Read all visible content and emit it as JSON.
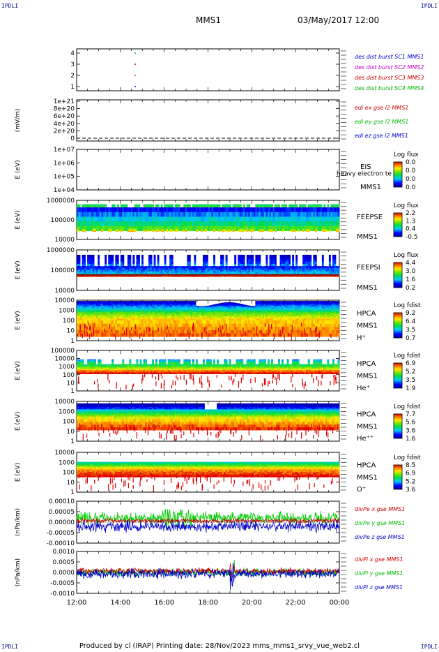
{
  "page": {
    "corner_tag": "IPDLI",
    "spacecraft": "MMS1",
    "date": "03/May/2017 12:00",
    "footer": "Produced by cl (IRAP)   Printing date: 28/Nov/2023   mms_mms1_srvy_vue_web2.cl"
  },
  "time_axis": {
    "ticks": [
      "12:00",
      "14:00",
      "16:00",
      "18:00",
      "20:00",
      "22:00",
      "00:00"
    ]
  },
  "panels": [
    {
      "id": "burst",
      "type": "markers",
      "ylabel": "",
      "yticks": [
        "4",
        "3",
        "2",
        "1"
      ],
      "legend": [
        {
          "text": "des dist burst SC1 MMS1",
          "color": "#0000cc"
        },
        {
          "text": "des dist burst SC2 MMS2",
          "color": "#cc00cc"
        },
        {
          "text": "des dist burst SC3 MMS3",
          "color": "#cc0000"
        },
        {
          "text": "des dist burst SC4 MMS4",
          "color": "#00bb00"
        }
      ]
    },
    {
      "id": "edi",
      "type": "line",
      "ylabel": "(mV/m)",
      "yticks": [
        "1e+21",
        "8e+20",
        "6e+20",
        "4e+20",
        "2e+20",
        "0"
      ],
      "legend": [
        {
          "text": "edi ex gse l2 MMS1",
          "color": "#cc0000"
        },
        {
          "text": "edi ey gse l2 MMS1",
          "color": "#00bb00"
        },
        {
          "text": "edi ez gse l2 MMS1",
          "color": "#0000cc"
        }
      ]
    },
    {
      "id": "eis",
      "type": "spectrogram",
      "ylabel": "E (eV)",
      "yticks": [
        "1e+07",
        "1e+06",
        "1e+05",
        "1e+04"
      ],
      "side_labels": [
        "EIS",
        "MMS1"
      ],
      "overlay_text": "heavy electron te",
      "cbar_title": "Log flux",
      "cbar_ticks": [
        "0.0",
        "0.0",
        "0.0",
        "0.0"
      ]
    },
    {
      "id": "feepse",
      "type": "spectrogram",
      "ylabel": "E (eV)",
      "yticks": [
        "1000000",
        "100000",
        "10000"
      ],
      "side_labels": [
        "FEEPSE",
        "MMS1"
      ],
      "cbar_title": "Log flux",
      "cbar_ticks": [
        "2.2",
        "1.3",
        "0.4",
        "-0.5"
      ]
    },
    {
      "id": "feepsi",
      "type": "spectrogram",
      "ylabel": "E (eV)",
      "yticks": [
        "1000000",
        "100000",
        "10000"
      ],
      "side_labels": [
        "FEEPSI",
        "MMS1"
      ],
      "cbar_title": "Log flux",
      "cbar_ticks": [
        "4.4",
        "3.0",
        "1.6",
        "0.2"
      ]
    },
    {
      "id": "hpca_h",
      "type": "spectrogram",
      "ylabel": "E (eV)",
      "yticks": [
        "10000",
        "1000",
        "100",
        "10",
        "1"
      ],
      "side_labels": [
        "HPCA",
        "MMS1",
        "H⁺"
      ],
      "cbar_title": "Log fdist",
      "cbar_ticks": [
        "9.2",
        "6.4",
        "3.5",
        "0.7"
      ]
    },
    {
      "id": "hpca_he",
      "type": "spectrogram",
      "ylabel": "E (eV)",
      "yticks": [
        "100000",
        "10000",
        "1000",
        "100",
        "10",
        "1"
      ],
      "side_labels": [
        "HPCA",
        "MMS1",
        "He⁺"
      ],
      "cbar_title": "Log fdist",
      "cbar_ticks": [
        "6.9",
        "5.2",
        "3.5",
        "1.9"
      ]
    },
    {
      "id": "hpca_hepp",
      "type": "spectrogram",
      "ylabel": "E (eV)",
      "yticks": [
        "10000",
        "1000",
        "100",
        "10",
        "1"
      ],
      "side_labels": [
        "HPCA",
        "MMS1",
        "He⁺⁺"
      ],
      "cbar_title": "Log fdist",
      "cbar_ticks": [
        "7.7",
        "5.6",
        "3.6",
        "1.6"
      ]
    },
    {
      "id": "hpca_o",
      "type": "spectrogram",
      "ylabel": "E (eV)",
      "yticks": [
        "10000",
        "1000",
        "100",
        "10",
        "1"
      ],
      "side_labels": [
        "HPCA",
        "MMS1",
        "O⁺"
      ],
      "cbar_title": "Log fdist",
      "cbar_ticks": [
        "8.5",
        "6.9",
        "5.2",
        "3.6"
      ]
    },
    {
      "id": "divpe",
      "type": "lines",
      "ylabel": "(nPa/km)",
      "yticks": [
        "0.00010",
        "0.00005",
        "0.00000",
        "-0.00005",
        "-0.00010"
      ],
      "legend": [
        {
          "text": "divPe x gse MMS1",
          "color": "#cc0000"
        },
        {
          "text": "divPe y gse MMS1",
          "color": "#00bb00"
        },
        {
          "text": "divPe z gse MMS1",
          "color": "#0000cc"
        }
      ]
    },
    {
      "id": "divpi",
      "type": "lines",
      "ylabel": "(nPa/km)",
      "yticks": [
        "0.0010",
        "0.0005",
        "0.0000",
        "-0.0005",
        "-0.0010"
      ],
      "legend": [
        {
          "text": "divPi x gse MMS1",
          "color": "#cc0000"
        },
        {
          "text": "divPi y gse MMS1",
          "color": "#00bb00"
        },
        {
          "text": "divPi z gse MMS1",
          "color": "#0000cc"
        }
      ]
    }
  ],
  "chart_data": {
    "type": "heatmap",
    "title": "MMS1  03/May/2017 12:00",
    "x": {
      "label": "",
      "ticks": [
        "12:00",
        "14:00",
        "16:00",
        "18:00",
        "20:00",
        "22:00",
        "00:00"
      ],
      "range_hours": [
        12,
        24
      ]
    },
    "series": [
      {
        "name": "des dist burst SC1 MMS1",
        "y": 1,
        "times_h": [
          14.65
        ]
      },
      {
        "name": "des dist burst SC2 MMS2",
        "y": 2,
        "times_h": [
          14.65
        ]
      },
      {
        "name": "des dist burst SC3 MMS3",
        "y": 3,
        "times_h": [
          14.65
        ]
      },
      {
        "name": "des dist burst SC4 MMS4",
        "y": 4,
        "times_h": [
          14.65
        ]
      },
      {
        "name": "divPe x gse MMS1",
        "ylim": [
          -0.00012,
          0.00012
        ],
        "typical_range": [
          -2e-05,
          2e-05
        ]
      },
      {
        "name": "divPe y gse MMS1",
        "ylim": [
          -0.00012,
          0.00012
        ],
        "typical_range": [
          0.0,
          5e-05
        ]
      },
      {
        "name": "divPe z gse MMS1",
        "ylim": [
          -0.00012,
          0.00012
        ],
        "typical_range": [
          -5e-05,
          0.0
        ]
      },
      {
        "name": "divPi x gse MMS1",
        "ylim": [
          -0.0012,
          0.0012
        ],
        "peaks": [
          {
            "t": 17.9,
            "v": 0.001
          }
        ]
      },
      {
        "name": "divPi y gse MMS1",
        "ylim": [
          -0.0012,
          0.0012
        ]
      },
      {
        "name": "divPi z gse MMS1",
        "ylim": [
          -0.0012,
          0.0012
        ]
      }
    ],
    "spectrograms": [
      {
        "name": "FEEPSE",
        "y_range_eV": [
          10000,
          1000000
        ],
        "colorbar": [
          -0.5,
          2.2
        ]
      },
      {
        "name": "FEEPSI",
        "y_range_eV": [
          10000,
          1000000
        ],
        "colorbar": [
          0.2,
          4.4
        ]
      },
      {
        "name": "HPCA H+",
        "y_range_eV": [
          1,
          40000
        ],
        "colorbar": [
          0.7,
          9.2
        ]
      },
      {
        "name": "HPCA He+",
        "y_range_eV": [
          1,
          100000
        ],
        "colorbar": [
          1.9,
          6.9
        ]
      },
      {
        "name": "HPCA He++",
        "y_range_eV": [
          1,
          10000
        ],
        "colorbar": [
          1.6,
          7.7
        ]
      },
      {
        "name": "HPCA O+",
        "y_range_eV": [
          1,
          100000
        ],
        "colorbar": [
          3.6,
          8.5
        ]
      }
    ]
  }
}
